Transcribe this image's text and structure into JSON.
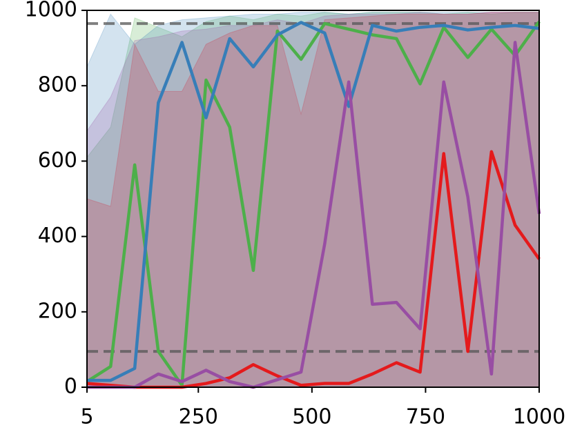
{
  "chart_data": {
    "type": "line",
    "x": [
      5,
      57,
      110,
      162,
      214,
      267,
      319,
      371,
      424,
      476,
      528,
      581,
      633,
      686,
      738,
      790,
      843,
      895,
      947,
      1000
    ],
    "xlim": [
      5,
      1000
    ],
    "xticks": [
      5,
      250,
      500,
      750,
      1000
    ],
    "ylim": [
      0,
      1000
    ],
    "yticks": [
      0,
      200,
      400,
      600,
      800,
      1000
    ],
    "reference_lines": [
      965,
      95
    ],
    "series": [
      {
        "color": "#4daf4a",
        "values": [
          15,
          55,
          590,
          95,
          5,
          815,
          690,
          310,
          945,
          870,
          965,
          950,
          935,
          925,
          805,
          955,
          875,
          950,
          880,
          970
        ],
        "upper": [
          610,
          690,
          980,
          955,
          930,
          970,
          985,
          975,
          990,
          985,
          995,
          990,
          995,
          995,
          995,
          990,
          995,
          990,
          995,
          995
        ],
        "lower": [
          0,
          0,
          0,
          0,
          0,
          0,
          0,
          0,
          0,
          0,
          0,
          0,
          0,
          0,
          0,
          0,
          0,
          0,
          0,
          0
        ]
      },
      {
        "color": "#377eb8",
        "values": [
          18,
          18,
          50,
          755,
          915,
          715,
          925,
          850,
          935,
          968,
          940,
          745,
          960,
          945,
          955,
          960,
          948,
          955,
          960,
          952
        ],
        "upper": [
          850,
          990,
          910,
          960,
          975,
          980,
          985,
          990,
          990,
          995,
          995,
          990,
          995,
          995,
          995,
          995,
          995,
          995,
          995,
          995
        ],
        "lower": [
          0,
          0,
          0,
          0,
          0,
          0,
          0,
          0,
          0,
          0,
          0,
          0,
          0,
          0,
          0,
          0,
          0,
          0,
          0,
          0
        ]
      },
      {
        "color": "#e41a1c",
        "values": [
          10,
          5,
          0,
          0,
          0,
          10,
          25,
          60,
          30,
          5,
          10,
          10,
          35,
          65,
          40,
          620,
          95,
          625,
          430,
          340
        ],
        "upper": [
          500,
          480,
          910,
          785,
          785,
          910,
          940,
          960,
          960,
          725,
          975,
          980,
          985,
          990,
          990,
          990,
          990,
          995,
          995,
          995
        ],
        "lower": [
          0,
          0,
          0,
          0,
          0,
          0,
          0,
          0,
          0,
          0,
          0,
          0,
          0,
          0,
          0,
          0,
          0,
          0,
          0,
          0
        ]
      },
      {
        "color": "#984ea3",
        "values": [
          0,
          0,
          0,
          35,
          15,
          45,
          15,
          0,
          20,
          40,
          380,
          810,
          220,
          225,
          155,
          810,
          505,
          35,
          915,
          460
        ],
        "upper": [
          680,
          770,
          920,
          930,
          945,
          950,
          960,
          960,
          975,
          965,
          985,
          990,
          990,
          990,
          995,
          990,
          990,
          995,
          995,
          995
        ],
        "lower": [
          0,
          0,
          0,
          0,
          0,
          0,
          0,
          0,
          0,
          0,
          0,
          0,
          0,
          0,
          0,
          0,
          0,
          0,
          0,
          0
        ]
      }
    ]
  }
}
